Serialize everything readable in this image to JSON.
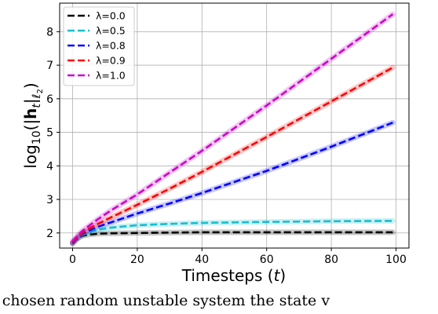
{
  "chart_data": {
    "type": "line",
    "title": "",
    "xlabel": "Timesteps (t)",
    "ylabel": "log10(|h_t|_l2)",
    "xlim": [
      -4,
      104
    ],
    "ylim": [
      1.55,
      8.85
    ],
    "xticks": [
      0,
      20,
      40,
      60,
      80,
      100
    ],
    "yticks": [
      2,
      3,
      4,
      5,
      6,
      7,
      8
    ],
    "grid": true,
    "legend": "top-left",
    "series": [
      {
        "name": "λ=0.0",
        "color": "#000000",
        "x": [
          0,
          1,
          2,
          3,
          5,
          8,
          12,
          20,
          30,
          40,
          60,
          80,
          99
        ],
        "y": [
          1.68,
          1.79,
          1.86,
          1.91,
          1.95,
          1.98,
          1.99,
          2.0,
          2.01,
          2.02,
          2.02,
          2.02,
          2.02
        ]
      },
      {
        "name": "λ=0.5",
        "color": "#17becf",
        "x": [
          0,
          1,
          2,
          3,
          5,
          8,
          12,
          20,
          30,
          40,
          60,
          80,
          99
        ],
        "y": [
          1.7,
          1.8,
          1.88,
          1.94,
          2.02,
          2.1,
          2.16,
          2.23,
          2.27,
          2.3,
          2.33,
          2.35,
          2.36
        ]
      },
      {
        "name": "λ=0.8",
        "color": "#0000ff",
        "x": [
          0,
          1,
          2,
          3,
          5,
          8,
          12,
          20,
          30,
          40,
          60,
          80,
          99
        ],
        "y": [
          1.7,
          1.8,
          1.9,
          1.97,
          2.07,
          2.19,
          2.32,
          2.58,
          2.88,
          3.19,
          3.85,
          4.57,
          5.29
        ]
      },
      {
        "name": "λ=0.9",
        "color": "#ff0000",
        "x": [
          0,
          1,
          2,
          3,
          5,
          8,
          12,
          20,
          30,
          40,
          60,
          80,
          99
        ],
        "y": [
          1.72,
          1.82,
          1.92,
          2.0,
          2.13,
          2.28,
          2.47,
          2.84,
          3.32,
          3.82,
          4.86,
          5.92,
          6.93
        ]
      },
      {
        "name": "λ=1.0",
        "color": "#cc00cc",
        "x": [
          0,
          1,
          2,
          3,
          5,
          8,
          12,
          20,
          30,
          40,
          60,
          80,
          99
        ],
        "y": [
          1.75,
          1.86,
          1.97,
          2.06,
          2.21,
          2.42,
          2.68,
          3.15,
          3.8,
          4.45,
          5.8,
          7.19,
          8.52
        ]
      }
    ]
  },
  "caption": "y chosen random unstable system the state v"
}
